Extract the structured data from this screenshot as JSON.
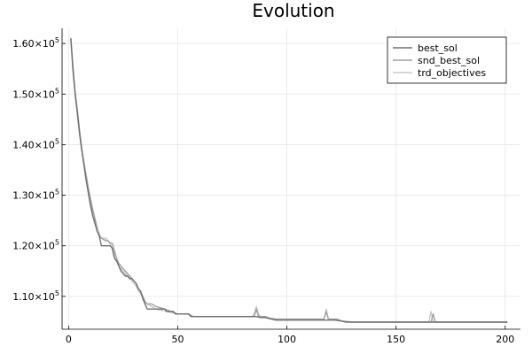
{
  "chart_data": {
    "type": "line",
    "title": "Evolution",
    "xlabel": "",
    "ylabel": "",
    "xlim": [
      -3,
      207
    ],
    "ylim": [
      103500,
      163000
    ],
    "xticks": [
      0,
      50,
      100,
      150,
      200
    ],
    "xtick_labels": [
      "0",
      "50",
      "100",
      "150",
      "200"
    ],
    "yticks": [
      110000,
      120000,
      130000,
      140000,
      150000,
      160000
    ],
    "ytick_labels": [
      {
        "mant": "1.10",
        "exp": "5"
      },
      {
        "mant": "1.20",
        "exp": "5"
      },
      {
        "mant": "1.30",
        "exp": "5"
      },
      {
        "mant": "1.40",
        "exp": "5"
      },
      {
        "mant": "1.50",
        "exp": "5"
      },
      {
        "mant": "1.60",
        "exp": "5"
      }
    ],
    "grid": true,
    "legend_position": "top-right",
    "series": [
      {
        "name": "best_sol",
        "color": "#707070",
        "points": [
          [
            1,
            161000
          ],
          [
            2,
            155000
          ],
          [
            3,
            150000
          ],
          [
            4,
            146500
          ],
          [
            5,
            142500
          ],
          [
            6,
            139000
          ],
          [
            7,
            136000
          ],
          [
            8,
            133000
          ],
          [
            9,
            130500
          ],
          [
            10,
            128000
          ],
          [
            11,
            126000
          ],
          [
            12,
            124500
          ],
          [
            13,
            123000
          ],
          [
            14,
            122000
          ],
          [
            15,
            120000
          ],
          [
            16,
            120000
          ],
          [
            18,
            120000
          ],
          [
            19,
            120000
          ],
          [
            20,
            119500
          ],
          [
            21,
            117500
          ],
          [
            22,
            117000
          ],
          [
            23,
            116000
          ],
          [
            24,
            115000
          ],
          [
            25,
            114500
          ],
          [
            26,
            114000
          ],
          [
            27,
            114000
          ],
          [
            28,
            113500
          ],
          [
            29,
            113500
          ],
          [
            30,
            113000
          ],
          [
            31,
            112500
          ],
          [
            32,
            111500
          ],
          [
            33,
            111000
          ],
          [
            34,
            109500
          ],
          [
            35,
            108500
          ],
          [
            36,
            107500
          ],
          [
            40,
            107500
          ],
          [
            44,
            107500
          ],
          [
            45,
            107000
          ],
          [
            48,
            107000
          ],
          [
            49,
            106500
          ],
          [
            55,
            106500
          ],
          [
            56,
            106000
          ],
          [
            85,
            106000
          ],
          [
            86,
            106000
          ],
          [
            88,
            105800
          ],
          [
            90,
            105800
          ],
          [
            93,
            105500
          ],
          [
            95,
            105300
          ],
          [
            120,
            105300
          ],
          [
            122,
            105300
          ],
          [
            125,
            105100
          ],
          [
            127,
            104900
          ],
          [
            130,
            104900
          ],
          [
            200,
            104900
          ],
          [
            201,
            104900
          ]
        ]
      },
      {
        "name": "snd_best_sol",
        "color": "#a0a0a0",
        "points": [
          [
            1,
            161000
          ],
          [
            2,
            154500
          ],
          [
            3,
            150000
          ],
          [
            4,
            146000
          ],
          [
            5,
            142000
          ],
          [
            6,
            139000
          ],
          [
            7,
            136500
          ],
          [
            8,
            134000
          ],
          [
            9,
            131500
          ],
          [
            10,
            129000
          ],
          [
            11,
            127000
          ],
          [
            12,
            125500
          ],
          [
            13,
            123000
          ],
          [
            14,
            122000
          ],
          [
            15,
            121500
          ],
          [
            17,
            121000
          ],
          [
            18,
            121000
          ],
          [
            19,
            120500
          ],
          [
            20,
            120500
          ],
          [
            21,
            119000
          ],
          [
            22,
            117500
          ],
          [
            23,
            116500
          ],
          [
            24,
            116000
          ],
          [
            25,
            115500
          ],
          [
            26,
            115000
          ],
          [
            27,
            114500
          ],
          [
            28,
            114000
          ],
          [
            29,
            113500
          ],
          [
            30,
            113000
          ],
          [
            31,
            112500
          ],
          [
            32,
            111500
          ],
          [
            33,
            111000
          ],
          [
            34,
            110000
          ],
          [
            35,
            109000
          ],
          [
            36,
            108500
          ],
          [
            38,
            108500
          ],
          [
            40,
            108000
          ],
          [
            44,
            107500
          ],
          [
            47,
            107000
          ],
          [
            50,
            106500
          ],
          [
            55,
            106500
          ],
          [
            57,
            106000
          ],
          [
            84,
            106000
          ],
          [
            85,
            106000
          ],
          [
            86,
            107500
          ],
          [
            87,
            106000
          ],
          [
            90,
            106000
          ],
          [
            92,
            105700
          ],
          [
            95,
            105500
          ],
          [
            117,
            105500
          ],
          [
            118,
            107000
          ],
          [
            119,
            105500
          ],
          [
            123,
            105500
          ],
          [
            125,
            105100
          ],
          [
            130,
            104900
          ],
          [
            166,
            104900
          ],
          [
            167,
            106500
          ],
          [
            168,
            104900
          ],
          [
            201,
            104900
          ]
        ]
      },
      {
        "name": "trd_objectives",
        "color": "#c8c8c8",
        "points": [
          [
            1,
            161200
          ],
          [
            2,
            155500
          ],
          [
            3,
            150500
          ],
          [
            4,
            147000
          ],
          [
            5,
            143000
          ],
          [
            6,
            139500
          ],
          [
            7,
            136500
          ],
          [
            8,
            134000
          ],
          [
            9,
            131500
          ],
          [
            10,
            129500
          ],
          [
            11,
            127500
          ],
          [
            12,
            125500
          ],
          [
            13,
            124000
          ],
          [
            14,
            122500
          ],
          [
            15,
            121500
          ],
          [
            17,
            121500
          ],
          [
            18,
            121000
          ],
          [
            19,
            120500
          ],
          [
            20,
            119500
          ],
          [
            21,
            118500
          ],
          [
            22,
            117500
          ],
          [
            23,
            116000
          ],
          [
            24,
            115500
          ],
          [
            25,
            115000
          ],
          [
            26,
            114500
          ],
          [
            27,
            114000
          ],
          [
            28,
            113500
          ],
          [
            29,
            113000
          ],
          [
            30,
            112500
          ],
          [
            31,
            112000
          ],
          [
            32,
            111000
          ],
          [
            33,
            110500
          ],
          [
            34,
            110000
          ],
          [
            35,
            109000
          ],
          [
            36,
            108500
          ],
          [
            38,
            108000
          ],
          [
            40,
            107500
          ],
          [
            45,
            107000
          ],
          [
            50,
            106500
          ],
          [
            55,
            106500
          ],
          [
            57,
            106000
          ],
          [
            84,
            106000
          ],
          [
            85,
            106500
          ],
          [
            86,
            108000
          ],
          [
            87,
            106500
          ],
          [
            88,
            106000
          ],
          [
            90,
            106000
          ],
          [
            92,
            105700
          ],
          [
            95,
            105500
          ],
          [
            117,
            105500
          ],
          [
            118,
            107500
          ],
          [
            119,
            105500
          ],
          [
            122,
            105500
          ],
          [
            125,
            105200
          ],
          [
            130,
            104900
          ],
          [
            165,
            104900
          ],
          [
            166,
            107000
          ],
          [
            167,
            104900
          ],
          [
            201,
            104900
          ]
        ]
      }
    ]
  }
}
